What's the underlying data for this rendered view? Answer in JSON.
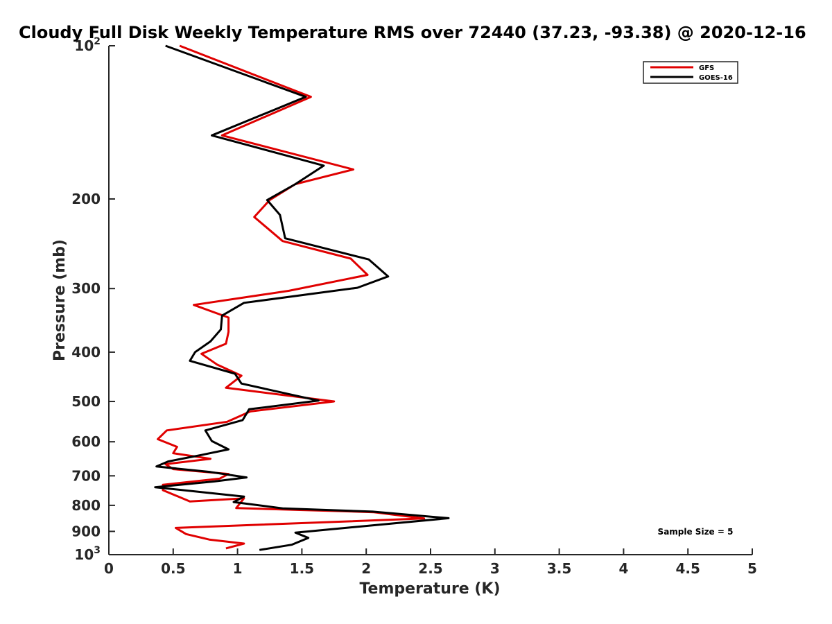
{
  "chart_data": {
    "type": "line",
    "title": "Cloudy Full Disk Weekly Temperature RMS over 72440 (37.23, -93.38) @ 2020-12-16",
    "xlabel": "Temperature (K)",
    "ylabel": "Pressure (mb)",
    "xlim": [
      0,
      5
    ],
    "ylim": [
      1000,
      100
    ],
    "yscale": "log",
    "grid": false,
    "legend_position": "top-right",
    "x_ticks": [
      "0",
      "0.5",
      "1",
      "1.5",
      "2",
      "2.5",
      "3",
      "3.5",
      "4",
      "4.5",
      "5"
    ],
    "y_ticks": [
      {
        "value": 100,
        "base": "10",
        "exp": "2"
      },
      {
        "value": 200,
        "label": "200"
      },
      {
        "value": 300,
        "label": "300"
      },
      {
        "value": 400,
        "label": "400"
      },
      {
        "value": 500,
        "label": "500"
      },
      {
        "value": 600,
        "label": "600"
      },
      {
        "value": 700,
        "label": "700"
      },
      {
        "value": 800,
        "label": "800"
      },
      {
        "value": 900,
        "label": "900"
      },
      {
        "value": 1000,
        "base": "10",
        "exp": "3"
      }
    ],
    "annotation": "Sample Size = 5",
    "series": [
      {
        "name": "GFS",
        "color": "#e00000",
        "points": [
          [
            0.55,
            100
          ],
          [
            1.57,
            126
          ],
          [
            0.88,
            150
          ],
          [
            1.9,
            175
          ],
          [
            1.45,
            187
          ],
          [
            1.25,
            201
          ],
          [
            1.13,
            217
          ],
          [
            1.35,
            242
          ],
          [
            1.88,
            262
          ],
          [
            2.01,
            282
          ],
          [
            1.4,
            303
          ],
          [
            0.66,
            323
          ],
          [
            0.93,
            342
          ],
          [
            0.93,
            365
          ],
          [
            0.91,
            385
          ],
          [
            0.72,
            403
          ],
          [
            0.84,
            423
          ],
          [
            1.03,
            445
          ],
          [
            0.91,
            470
          ],
          [
            1.42,
            488
          ],
          [
            1.75,
            500
          ],
          [
            1.1,
            523
          ],
          [
            0.92,
            548
          ],
          [
            0.45,
            570
          ],
          [
            0.38,
            593
          ],
          [
            0.53,
            614
          ],
          [
            0.5,
            632
          ],
          [
            0.79,
            648
          ],
          [
            0.44,
            664
          ],
          [
            0.5,
            679
          ],
          [
            0.93,
            694
          ],
          [
            0.86,
            709
          ],
          [
            0.42,
            729
          ],
          [
            0.42,
            747
          ],
          [
            0.63,
            786
          ],
          [
            1.05,
            775
          ],
          [
            0.99,
            810
          ],
          [
            2.06,
            825
          ],
          [
            2.45,
            849
          ],
          [
            0.52,
            886
          ],
          [
            0.6,
            911
          ],
          [
            0.78,
            934
          ],
          [
            1.05,
            951
          ],
          [
            0.91,
            972
          ]
        ]
      },
      {
        "name": "GOES-16",
        "color": "#000000",
        "points": [
          [
            0.44,
            100
          ],
          [
            1.53,
            126
          ],
          [
            0.8,
            150
          ],
          [
            1.67,
            172
          ],
          [
            1.45,
            187
          ],
          [
            1.23,
            201
          ],
          [
            1.33,
            215
          ],
          [
            1.37,
            239
          ],
          [
            2.02,
            263
          ],
          [
            2.17,
            284
          ],
          [
            1.93,
            299
          ],
          [
            1.05,
            320
          ],
          [
            0.88,
            339
          ],
          [
            0.87,
            361
          ],
          [
            0.79,
            381
          ],
          [
            0.67,
            400
          ],
          [
            0.63,
            416
          ],
          [
            0.98,
            441
          ],
          [
            1.03,
            461
          ],
          [
            1.42,
            485
          ],
          [
            1.63,
            498
          ],
          [
            1.09,
            518
          ],
          [
            1.04,
            544
          ],
          [
            0.75,
            570
          ],
          [
            0.8,
            598
          ],
          [
            0.93,
            621
          ],
          [
            0.72,
            637
          ],
          [
            0.46,
            656
          ],
          [
            0.37,
            671
          ],
          [
            0.79,
            688
          ],
          [
            1.07,
            705
          ],
          [
            0.82,
            718
          ],
          [
            0.36,
            737
          ],
          [
            1.05,
            769
          ],
          [
            0.97,
            788
          ],
          [
            1.35,
            811
          ],
          [
            2.05,
            823
          ],
          [
            2.64,
            848
          ],
          [
            1.45,
            905
          ],
          [
            1.55,
            927
          ],
          [
            1.42,
            956
          ],
          [
            1.17,
            979
          ]
        ]
      }
    ]
  }
}
